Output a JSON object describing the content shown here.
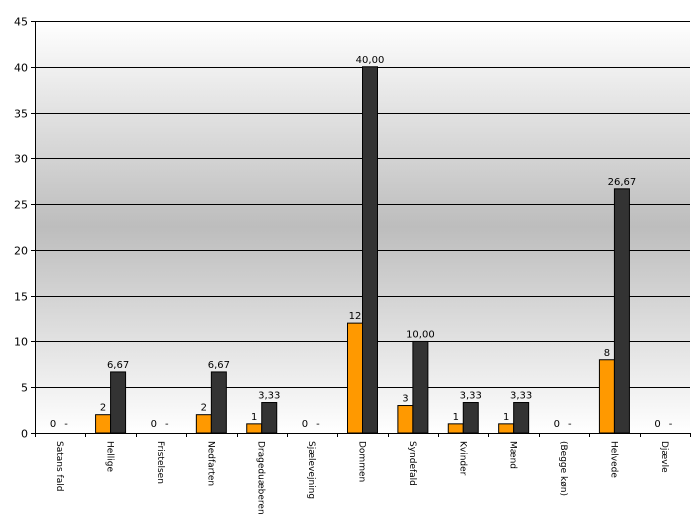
{
  "chart_data": {
    "type": "bar",
    "title": "",
    "xlabel": "",
    "ylabel": "",
    "ylim": [
      0,
      45
    ],
    "yticks": [
      0,
      5,
      10,
      15,
      20,
      25,
      30,
      35,
      40,
      45
    ],
    "grid": true,
    "legend": "none",
    "categories": [
      "Satans fald",
      "Hellige",
      "Fristelsen",
      "Nedfarten",
      "Drageduæberen",
      "Sjælevejning",
      "Dommen",
      "Syndefald",
      "Kvinder",
      "Mænd",
      "(Begge køn)",
      "Helvede",
      "Djævle"
    ],
    "series": [
      {
        "color": "#ff9900",
        "values": [
          0,
          2,
          0,
          2,
          1,
          0,
          12,
          3,
          1,
          1,
          0,
          8,
          0
        ],
        "labels": [
          "0",
          "2",
          "0",
          "2",
          "1",
          "0",
          "12",
          "3",
          "1",
          "1",
          "0",
          "8",
          "0"
        ]
      },
      {
        "color": "#333333",
        "values": [
          0,
          6.67,
          0,
          6.67,
          3.33,
          0,
          40.0,
          10.0,
          3.33,
          3.33,
          0,
          26.67,
          0
        ],
        "labels": [
          "-",
          "6,67",
          "-",
          "6,67",
          "3,33",
          "-",
          "40,00",
          "10,00",
          "3,33",
          "3,33",
          "-",
          "26,67",
          "-"
        ]
      }
    ]
  }
}
